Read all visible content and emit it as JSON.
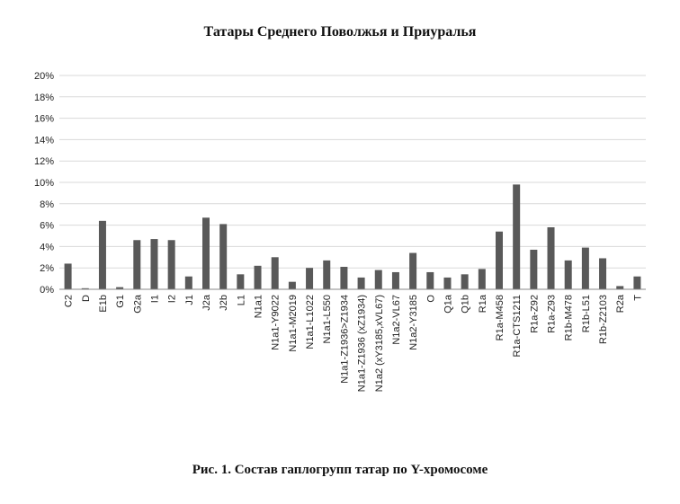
{
  "chart_data": {
    "type": "bar",
    "title": "Татары Среднего Поволжья и Приуралья",
    "caption": "Рис. 1. Состав гаплогрупп татар по Y-хромосоме",
    "xlabel": "",
    "ylabel": "",
    "ylim": [
      0,
      20
    ],
    "yticks": [
      "0%",
      "2%",
      "4%",
      "6%",
      "8%",
      "10%",
      "12%",
      "14%",
      "16%",
      "18%",
      "20%"
    ],
    "grid": true,
    "legend": "none",
    "bar_color": "#595959",
    "categories": [
      "C2",
      "D",
      "E1b",
      "G1",
      "G2a",
      "I1",
      "I2",
      "J1",
      "J2a",
      "J2b",
      "L1",
      "N1a1",
      "N1a1-Y9022",
      "N1a1-M2019",
      "N1a1-L1022",
      "N1a1-L550",
      "N1a1-Z1936>Z1934",
      "N1a1-Z1936 (xZ1934)",
      "N1a2 (xY3185,xVL67)",
      "N1a2-VL67",
      "N1a2-Y3185",
      "O",
      "Q1a",
      "Q1b",
      "R1a",
      "R1a-M458",
      "R1a-CTS1211",
      "R1a-Z92",
      "R1a-Z93",
      "R1b-M478",
      "R1b-L51",
      "R1b-Z2103",
      "R2a",
      "T"
    ],
    "values": [
      2.4,
      0.1,
      6.4,
      0.2,
      4.6,
      4.7,
      4.6,
      1.2,
      6.7,
      6.1,
      1.4,
      2.2,
      3.0,
      0.7,
      2.0,
      2.7,
      2.1,
      1.1,
      1.8,
      1.6,
      3.4,
      1.6,
      1.1,
      1.4,
      1.9,
      5.4,
      9.8,
      3.7,
      5.8,
      2.7,
      3.9,
      2.9,
      0.3,
      1.2
    ]
  }
}
